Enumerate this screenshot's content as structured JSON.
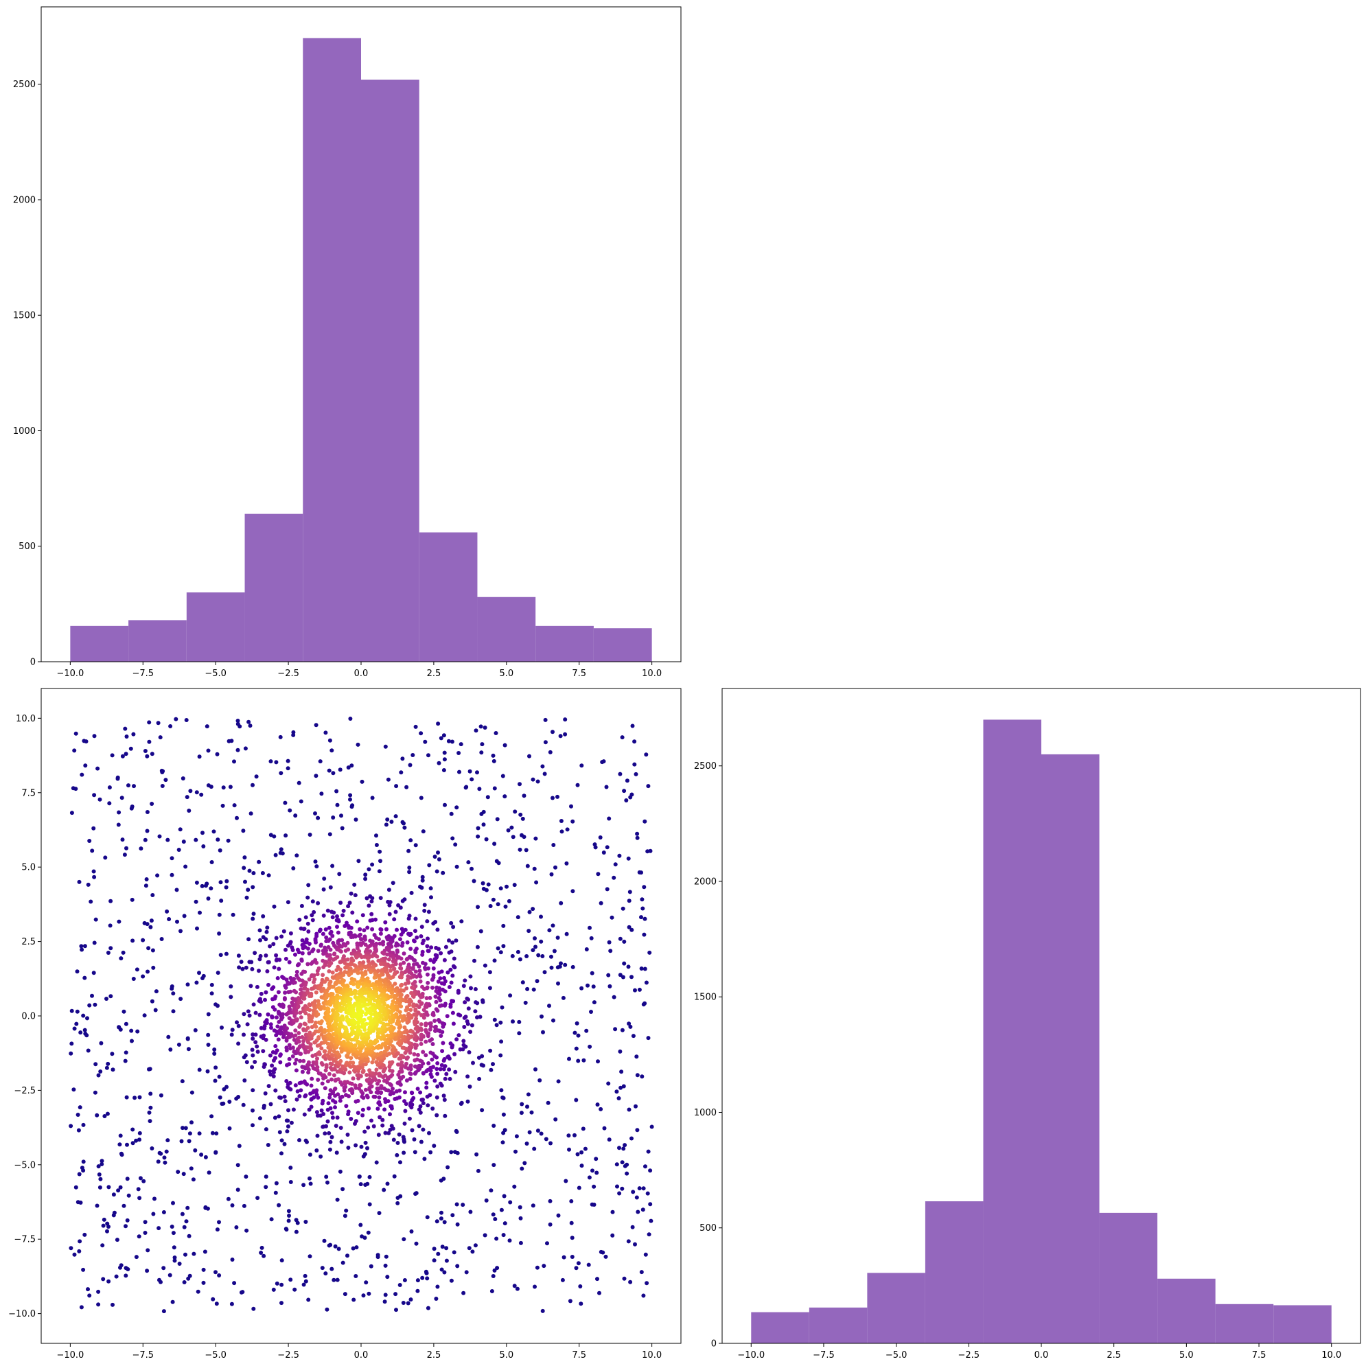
{
  "colors": {
    "bar": "#9467bd",
    "axis": "#000000",
    "scatter_colormap": [
      "#0d0887",
      "#6a00a8",
      "#b12a90",
      "#e16462",
      "#fca636",
      "#f0f921"
    ]
  },
  "chart_data": [
    {
      "id": "hist_x",
      "panel": "top-left",
      "type": "bar",
      "title": "",
      "xlabel": "",
      "ylabel": "",
      "bin_edges": [
        -10,
        -8,
        -6,
        -4,
        -2,
        0,
        2,
        4,
        6,
        8,
        10
      ],
      "values": [
        155,
        180,
        300,
        640,
        2700,
        2520,
        560,
        280,
        155,
        145
      ],
      "xlim": [
        -11,
        11
      ],
      "ylim": [
        0,
        2835
      ],
      "xticks": [
        -10.0,
        -7.5,
        -5.0,
        -2.5,
        0.0,
        2.5,
        5.0,
        7.5,
        10.0
      ],
      "xtick_labels": [
        "−10.0",
        "−7.5",
        "−5.0",
        "−2.5",
        "0.0",
        "2.5",
        "5.0",
        "7.5",
        "10.0"
      ],
      "yticks": [
        0,
        500,
        1000,
        1500,
        2000,
        2500
      ],
      "ytick_labels": [
        "0",
        "500",
        "1000",
        "1500",
        "2000",
        "2500"
      ],
      "grid": false
    },
    {
      "id": "scatter_xy",
      "panel": "bottom-left",
      "type": "scatter",
      "title": "",
      "xlabel": "",
      "ylabel": "",
      "description": "~4000 points: dense gaussian cluster centered at (0,0) with std ~1.5 plus uniform background over [-10,10]x[-10,10]; color = local density (plasma colormap)",
      "cluster_center": [
        0,
        0
      ],
      "range": [
        -10,
        10
      ],
      "xlim": [
        -11,
        11
      ],
      "ylim": [
        -11,
        11
      ],
      "xticks": [
        -10.0,
        -7.5,
        -5.0,
        -2.5,
        0.0,
        2.5,
        5.0,
        7.5,
        10.0
      ],
      "xtick_labels": [
        "−10.0",
        "−7.5",
        "−5.0",
        "−2.5",
        "0.0",
        "2.5",
        "5.0",
        "7.5",
        "10.0"
      ],
      "yticks": [
        -10.0,
        -7.5,
        -5.0,
        -2.5,
        0.0,
        2.5,
        5.0,
        7.5,
        10.0
      ],
      "ytick_labels": [
        "−10.0",
        "−7.5",
        "−5.0",
        "−2.5",
        "0.0",
        "2.5",
        "5.0",
        "7.5",
        "10.0"
      ],
      "grid": false
    },
    {
      "id": "hist_y",
      "panel": "bottom-right",
      "type": "bar",
      "title": "",
      "xlabel": "",
      "ylabel": "",
      "bin_edges": [
        -10,
        -8,
        -6,
        -4,
        -2,
        0,
        2,
        4,
        6,
        8,
        10
      ],
      "values": [
        135,
        155,
        305,
        615,
        2700,
        2550,
        565,
        280,
        170,
        165
      ],
      "xlim": [
        -11,
        11
      ],
      "ylim": [
        0,
        2835
      ],
      "xticks": [
        -10.0,
        -7.5,
        -5.0,
        -2.5,
        0.0,
        2.5,
        5.0,
        7.5,
        10.0
      ],
      "xtick_labels": [
        "−10.0",
        "−7.5",
        "−5.0",
        "−2.5",
        "0.0",
        "2.5",
        "5.0",
        "7.5",
        "10.0"
      ],
      "yticks": [
        0,
        500,
        1000,
        1500,
        2000,
        2500
      ],
      "ytick_labels": [
        "0",
        "500",
        "1000",
        "1500",
        "2000",
        "2500"
      ],
      "grid": false
    }
  ]
}
